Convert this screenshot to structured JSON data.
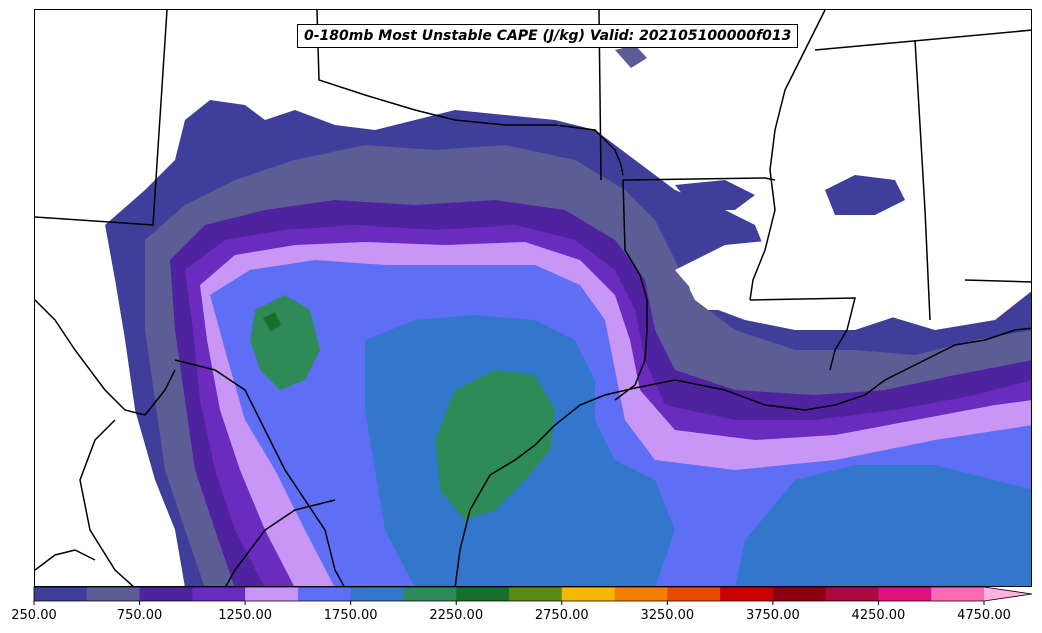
{
  "title": "0-180mb Most Unstable CAPE (J/kg) Valid: 202105100000f013",
  "colorbar": {
    "colors": [
      "#3f3f9b",
      "#5d5d96",
      "#4f23a0",
      "#6b2bbf",
      "#c896f5",
      "#5f6ff5",
      "#3377cc",
      "#2e8b57",
      "#1a6e2d",
      "#5b8a12",
      "#f5b800",
      "#f57f00",
      "#e84a00",
      "#cc0000",
      "#8b0010",
      "#aa0a3c",
      "#e0107f",
      "#ff6ab0"
    ],
    "tick_labels": [
      "250.00",
      "750.00",
      "1250.00",
      "1750.00",
      "2250.00",
      "2750.00",
      "3250.00",
      "3750.00",
      "4250.00",
      "4750.00"
    ],
    "extend_color": "#ffb3d9"
  },
  "map": {
    "background": "#ffffff",
    "boundary_color": "#000000"
  }
}
